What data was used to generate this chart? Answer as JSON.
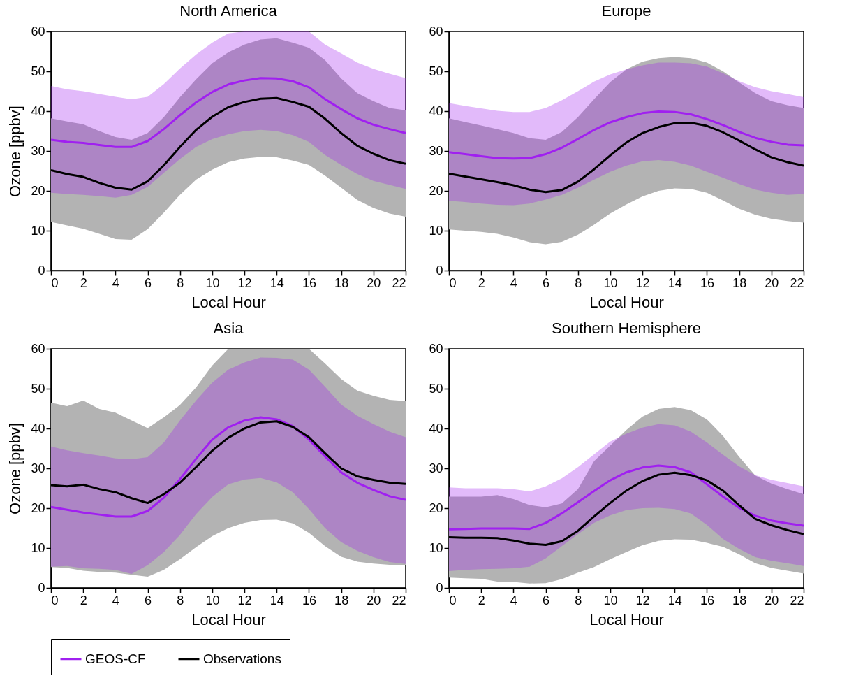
{
  "chart_data": [
    {
      "type": "line",
      "title": "North America",
      "xlabel": "Local Hour",
      "ylabel": "Ozone [ppbv]",
      "legend": "bottom",
      "grid": false,
      "x": [
        0,
        1,
        2,
        3,
        4,
        5,
        6,
        7,
        8,
        9,
        10,
        11,
        12,
        13,
        14,
        15,
        16,
        17,
        18,
        19,
        20,
        21,
        22
      ],
      "xlim": [
        0,
        22
      ],
      "xticks": [
        0,
        2,
        4,
        6,
        8,
        10,
        12,
        14,
        16,
        18,
        20,
        22
      ],
      "ylim": [
        0,
        60
      ],
      "yticks": [
        0,
        10,
        20,
        30,
        40,
        50,
        60
      ],
      "series": [
        {
          "name": "GEOS-CF",
          "color": "#a020f0",
          "values": [
            32.8,
            32.3,
            32,
            31.5,
            31,
            31,
            32.5,
            35.5,
            39,
            42.2,
            44.8,
            46.7,
            47.7,
            48.3,
            48.2,
            47.5,
            46,
            43,
            40.5,
            38.2,
            36.6,
            35.5,
            34.5
          ],
          "lower": [
            19.5,
            19.2,
            19,
            18.7,
            18.3,
            19,
            21,
            24.5,
            28,
            31,
            33,
            34.2,
            35,
            35.3,
            35,
            34,
            32.3,
            29,
            26.5,
            24.2,
            22.5,
            21.5,
            20.5
          ],
          "upper": [
            46.3,
            45.5,
            45,
            44.3,
            43.6,
            43,
            43.6,
            46.8,
            50.7,
            54.2,
            57.2,
            59.5,
            60,
            60,
            60,
            60,
            60,
            56.7,
            54.5,
            52.2,
            50.6,
            49.4,
            48.3
          ]
        },
        {
          "name": "Observations",
          "color": "#000000",
          "values": [
            25.2,
            24.2,
            23.5,
            22,
            20.8,
            20.3,
            22.4,
            26.4,
            31,
            35.3,
            38.6,
            41,
            42.3,
            43.1,
            43.3,
            42.3,
            41.1,
            38.1,
            34.5,
            31.3,
            29.3,
            27.7,
            26.8
          ],
          "lower": [
            12.2,
            11.3,
            10.5,
            9.2,
            7.9,
            7.7,
            10.4,
            14.5,
            19,
            22.8,
            25.3,
            27.2,
            28.1,
            28.5,
            28.4,
            27.6,
            26.5,
            23.8,
            20.8,
            17.7,
            15.7,
            14.3,
            13.5
          ],
          "upper": [
            38.2,
            37.4,
            36.7,
            35,
            33.5,
            32.8,
            34.5,
            38.5,
            43.5,
            48,
            52,
            54.8,
            56.7,
            58,
            58.3,
            57.2,
            55.9,
            52.8,
            48.2,
            44.5,
            42.5,
            40.8,
            40.2
          ]
        }
      ]
    },
    {
      "type": "line",
      "title": "Europe",
      "xlabel": "Local Hour",
      "legend": "bottom",
      "grid": false,
      "x": [
        0,
        1,
        2,
        3,
        4,
        5,
        6,
        7,
        8,
        9,
        10,
        11,
        12,
        13,
        14,
        15,
        16,
        17,
        18,
        19,
        20,
        21,
        22
      ],
      "xlim": [
        0,
        22
      ],
      "xticks": [
        0,
        2,
        4,
        6,
        8,
        10,
        12,
        14,
        16,
        18,
        20,
        22
      ],
      "ylim": [
        0,
        60
      ],
      "yticks": [
        0,
        10,
        20,
        30,
        40,
        50,
        60
      ],
      "series": [
        {
          "name": "GEOS-CF",
          "color": "#a020f0",
          "values": [
            29.7,
            29.2,
            28.7,
            28.2,
            28.1,
            28.2,
            29.2,
            30.8,
            33,
            35.3,
            37.2,
            38.5,
            39.5,
            39.9,
            39.8,
            39.2,
            38,
            36.5,
            34.8,
            33.3,
            32.3,
            31.6,
            31.4
          ],
          "lower": [
            17.5,
            17.2,
            16.8,
            16.5,
            16.4,
            16.8,
            17.8,
            19,
            20.8,
            22.8,
            24.8,
            26.3,
            27.4,
            27.7,
            27.3,
            26.3,
            24.8,
            23.3,
            21.7,
            20.3,
            19.5,
            19,
            19.2
          ],
          "upper": [
            42,
            41.3,
            40.7,
            40.1,
            39.8,
            39.8,
            40.8,
            42.7,
            45,
            47.4,
            49.2,
            50.5,
            51.5,
            52.2,
            52.2,
            52,
            51.2,
            49.5,
            47.5,
            46,
            45,
            44.3,
            43.5
          ]
        },
        {
          "name": "Observations",
          "color": "#000000",
          "values": [
            24.3,
            23.6,
            22.9,
            22.2,
            21.4,
            20.3,
            19.7,
            20.2,
            22.3,
            25.4,
            28.9,
            32.1,
            34.5,
            36,
            37,
            37.1,
            36.3,
            34.7,
            32.6,
            30.4,
            28.4,
            27.2,
            26.3
          ],
          "lower": [
            10.3,
            10,
            9.7,
            9.2,
            8.3,
            7.1,
            6.6,
            7.2,
            9,
            11.5,
            14.3,
            16.6,
            18.6,
            20,
            20.6,
            20.5,
            19.5,
            17.6,
            15.5,
            14,
            13,
            12.4,
            12
          ],
          "upper": [
            38.2,
            37.3,
            36.4,
            35.5,
            34.5,
            33.2,
            32.8,
            34.8,
            38.5,
            43,
            47.3,
            50.5,
            52.4,
            53.3,
            53.6,
            53.3,
            52.2,
            50,
            47.2,
            44.5,
            42.5,
            41.5,
            40.8
          ]
        }
      ]
    },
    {
      "type": "line",
      "title": "Asia",
      "xlabel": "Local Hour",
      "ylabel": "Ozone [ppbv]",
      "legend": "bottom",
      "grid": false,
      "x": [
        0,
        1,
        2,
        3,
        4,
        5,
        6,
        7,
        8,
        9,
        10,
        11,
        12,
        13,
        14,
        15,
        16,
        17,
        18,
        19,
        20,
        21,
        22
      ],
      "xlim": [
        0,
        22
      ],
      "xticks": [
        0,
        2,
        4,
        6,
        8,
        10,
        12,
        14,
        16,
        18,
        20,
        22
      ],
      "ylim": [
        0,
        60
      ],
      "yticks": [
        0,
        10,
        20,
        30,
        40,
        50,
        60
      ],
      "series": [
        {
          "name": "GEOS-CF",
          "color": "#a020f0",
          "values": [
            20.3,
            19.6,
            18.9,
            18.4,
            17.9,
            17.9,
            19.3,
            22.6,
            27.3,
            32.4,
            37.2,
            40.3,
            42,
            42.8,
            42.3,
            40.6,
            37.2,
            33,
            29,
            26.4,
            24.6,
            23,
            22.1
          ],
          "lower": [
            5.3,
            5.5,
            4.9,
            4.8,
            4.5,
            3.5,
            5.7,
            9,
            13.3,
            18.5,
            22.8,
            26,
            27.2,
            27.6,
            26.5,
            24,
            19.8,
            15,
            11.5,
            9.3,
            7.7,
            6.5,
            6
          ],
          "upper": [
            35.5,
            34.5,
            33.8,
            33.2,
            32.5,
            32.3,
            32.8,
            36.5,
            42,
            47,
            51.5,
            54.8,
            56.6,
            57.8,
            57.7,
            57.3,
            54.8,
            50.5,
            46,
            43.2,
            41.1,
            39.2,
            37.8
          ]
        },
        {
          "name": "Observations",
          "color": "#000000",
          "values": [
            25.8,
            25.5,
            25.9,
            24.8,
            24,
            22.5,
            21.3,
            23.5,
            26.4,
            30.3,
            34.4,
            37.7,
            40,
            41.5,
            41.8,
            40.4,
            37.8,
            33.8,
            30,
            28,
            27.1,
            26.4,
            26.1
          ],
          "lower": [
            5.2,
            5,
            4.3,
            4,
            3.8,
            3.3,
            2.8,
            4.5,
            7.2,
            10.2,
            13,
            15,
            16.3,
            17,
            17.1,
            16.2,
            13.8,
            10.5,
            7.8,
            6.6,
            6.1,
            5.8,
            5.6
          ],
          "upper": [
            46.5,
            45.6,
            47,
            44.9,
            44,
            42,
            40.1,
            42.8,
            45.9,
            50.3,
            55.8,
            60,
            60,
            60,
            60,
            60,
            60,
            56.3,
            52.4,
            49.5,
            48.2,
            47.2,
            46.9
          ]
        }
      ]
    },
    {
      "type": "line",
      "title": "Southern Hemisphere",
      "xlabel": "Local Hour",
      "legend": "bottom",
      "grid": false,
      "x": [
        0,
        1,
        2,
        3,
        4,
        5,
        6,
        7,
        8,
        9,
        10,
        11,
        12,
        13,
        14,
        15,
        16,
        17,
        18,
        19,
        20,
        21,
        22
      ],
      "xlim": [
        0,
        22
      ],
      "xticks": [
        0,
        2,
        4,
        6,
        8,
        10,
        12,
        14,
        16,
        18,
        20,
        22
      ],
      "ylim": [
        0,
        60
      ],
      "yticks": [
        0,
        10,
        20,
        30,
        40,
        50,
        60
      ],
      "series": [
        {
          "name": "GEOS-CF",
          "color": "#a020f0",
          "values": [
            14.7,
            14.8,
            14.9,
            14.9,
            14.9,
            14.8,
            16.3,
            18.7,
            21.5,
            24.3,
            27,
            29,
            30.2,
            30.7,
            30.3,
            29,
            26,
            22.9,
            20.1,
            18.1,
            16.9,
            16.2,
            15.6
          ],
          "lower": [
            4.2,
            4.5,
            4.7,
            4.8,
            4.9,
            5.3,
            7.4,
            10.5,
            13.5,
            16.3,
            18.2,
            19.5,
            20,
            20.1,
            19.8,
            18.7,
            15.8,
            12.3,
            9.8,
            7.7,
            6.8,
            6.2,
            5.5
          ],
          "upper": [
            25.2,
            25,
            25,
            25,
            24.8,
            24.2,
            25.5,
            27.5,
            30.3,
            33.5,
            36.7,
            38.7,
            40.2,
            41.1,
            40.8,
            39.2,
            36.5,
            33.4,
            30.5,
            28.3,
            27.1,
            26.3,
            25.5
          ]
        },
        {
          "name": "Observations",
          "color": "#000000",
          "values": [
            12.7,
            12.6,
            12.6,
            12.5,
            11.9,
            11.1,
            10.8,
            11.7,
            14.3,
            17.9,
            21.3,
            24.4,
            26.8,
            28.4,
            28.9,
            28.3,
            27,
            24.4,
            20.7,
            17.3,
            15.7,
            14.5,
            13.5
          ],
          "lower": [
            2.6,
            2.4,
            2.3,
            1.6,
            1.5,
            1.1,
            1.2,
            2.2,
            3.8,
            5.2,
            7.2,
            9,
            10.7,
            11.8,
            12.2,
            12.1,
            11.3,
            10.3,
            8.4,
            6.2,
            5,
            4.3,
            3.6
          ],
          "upper": [
            22.9,
            22.9,
            22.9,
            23.3,
            22.3,
            20.8,
            20.2,
            21.2,
            24.8,
            31.8,
            35.7,
            39.6,
            43,
            44.9,
            45.4,
            44.6,
            42.3,
            38.1,
            32.9,
            28.2,
            26.2,
            24.8,
            23.5
          ]
        }
      ]
    }
  ]
}
